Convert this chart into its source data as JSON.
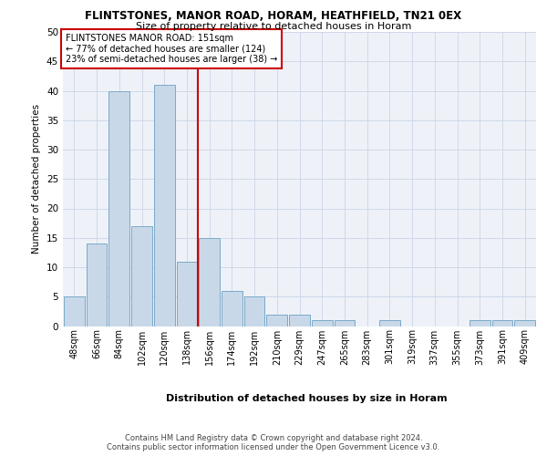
{
  "title": "FLINTSTONES, MANOR ROAD, HORAM, HEATHFIELD, TN21 0EX",
  "subtitle": "Size of property relative to detached houses in Horam",
  "xlabel": "Distribution of detached houses by size in Horam",
  "ylabel": "Number of detached properties",
  "bin_labels": [
    "48sqm",
    "66sqm",
    "84sqm",
    "102sqm",
    "120sqm",
    "138sqm",
    "156sqm",
    "174sqm",
    "192sqm",
    "210sqm",
    "229sqm",
    "247sqm",
    "265sqm",
    "283sqm",
    "301sqm",
    "319sqm",
    "337sqm",
    "355sqm",
    "373sqm",
    "391sqm",
    "409sqm"
  ],
  "bar_heights": [
    5,
    14,
    40,
    17,
    41,
    11,
    15,
    6,
    5,
    2,
    2,
    1,
    1,
    0,
    1,
    0,
    0,
    0,
    1,
    1,
    1
  ],
  "bar_color": "#c8d8e8",
  "bar_edge_color": "#7aaac8",
  "grid_color": "#d0d8e8",
  "background_color": "#eef2f8",
  "vline_x_index": 5.5,
  "vline_color": "#cc0000",
  "annotation_text": "FLINTSTONES MANOR ROAD: 151sqm\n← 77% of detached houses are smaller (124)\n23% of semi-detached houses are larger (38) →",
  "annotation_box_color": "#ffffff",
  "annotation_box_edge": "#cc0000",
  "ylim": [
    0,
    50
  ],
  "yticks": [
    0,
    5,
    10,
    15,
    20,
    25,
    30,
    35,
    40,
    45,
    50
  ],
  "footer_line1": "Contains HM Land Registry data © Crown copyright and database right 2024.",
  "footer_line2": "Contains public sector information licensed under the Open Government Licence v3.0."
}
